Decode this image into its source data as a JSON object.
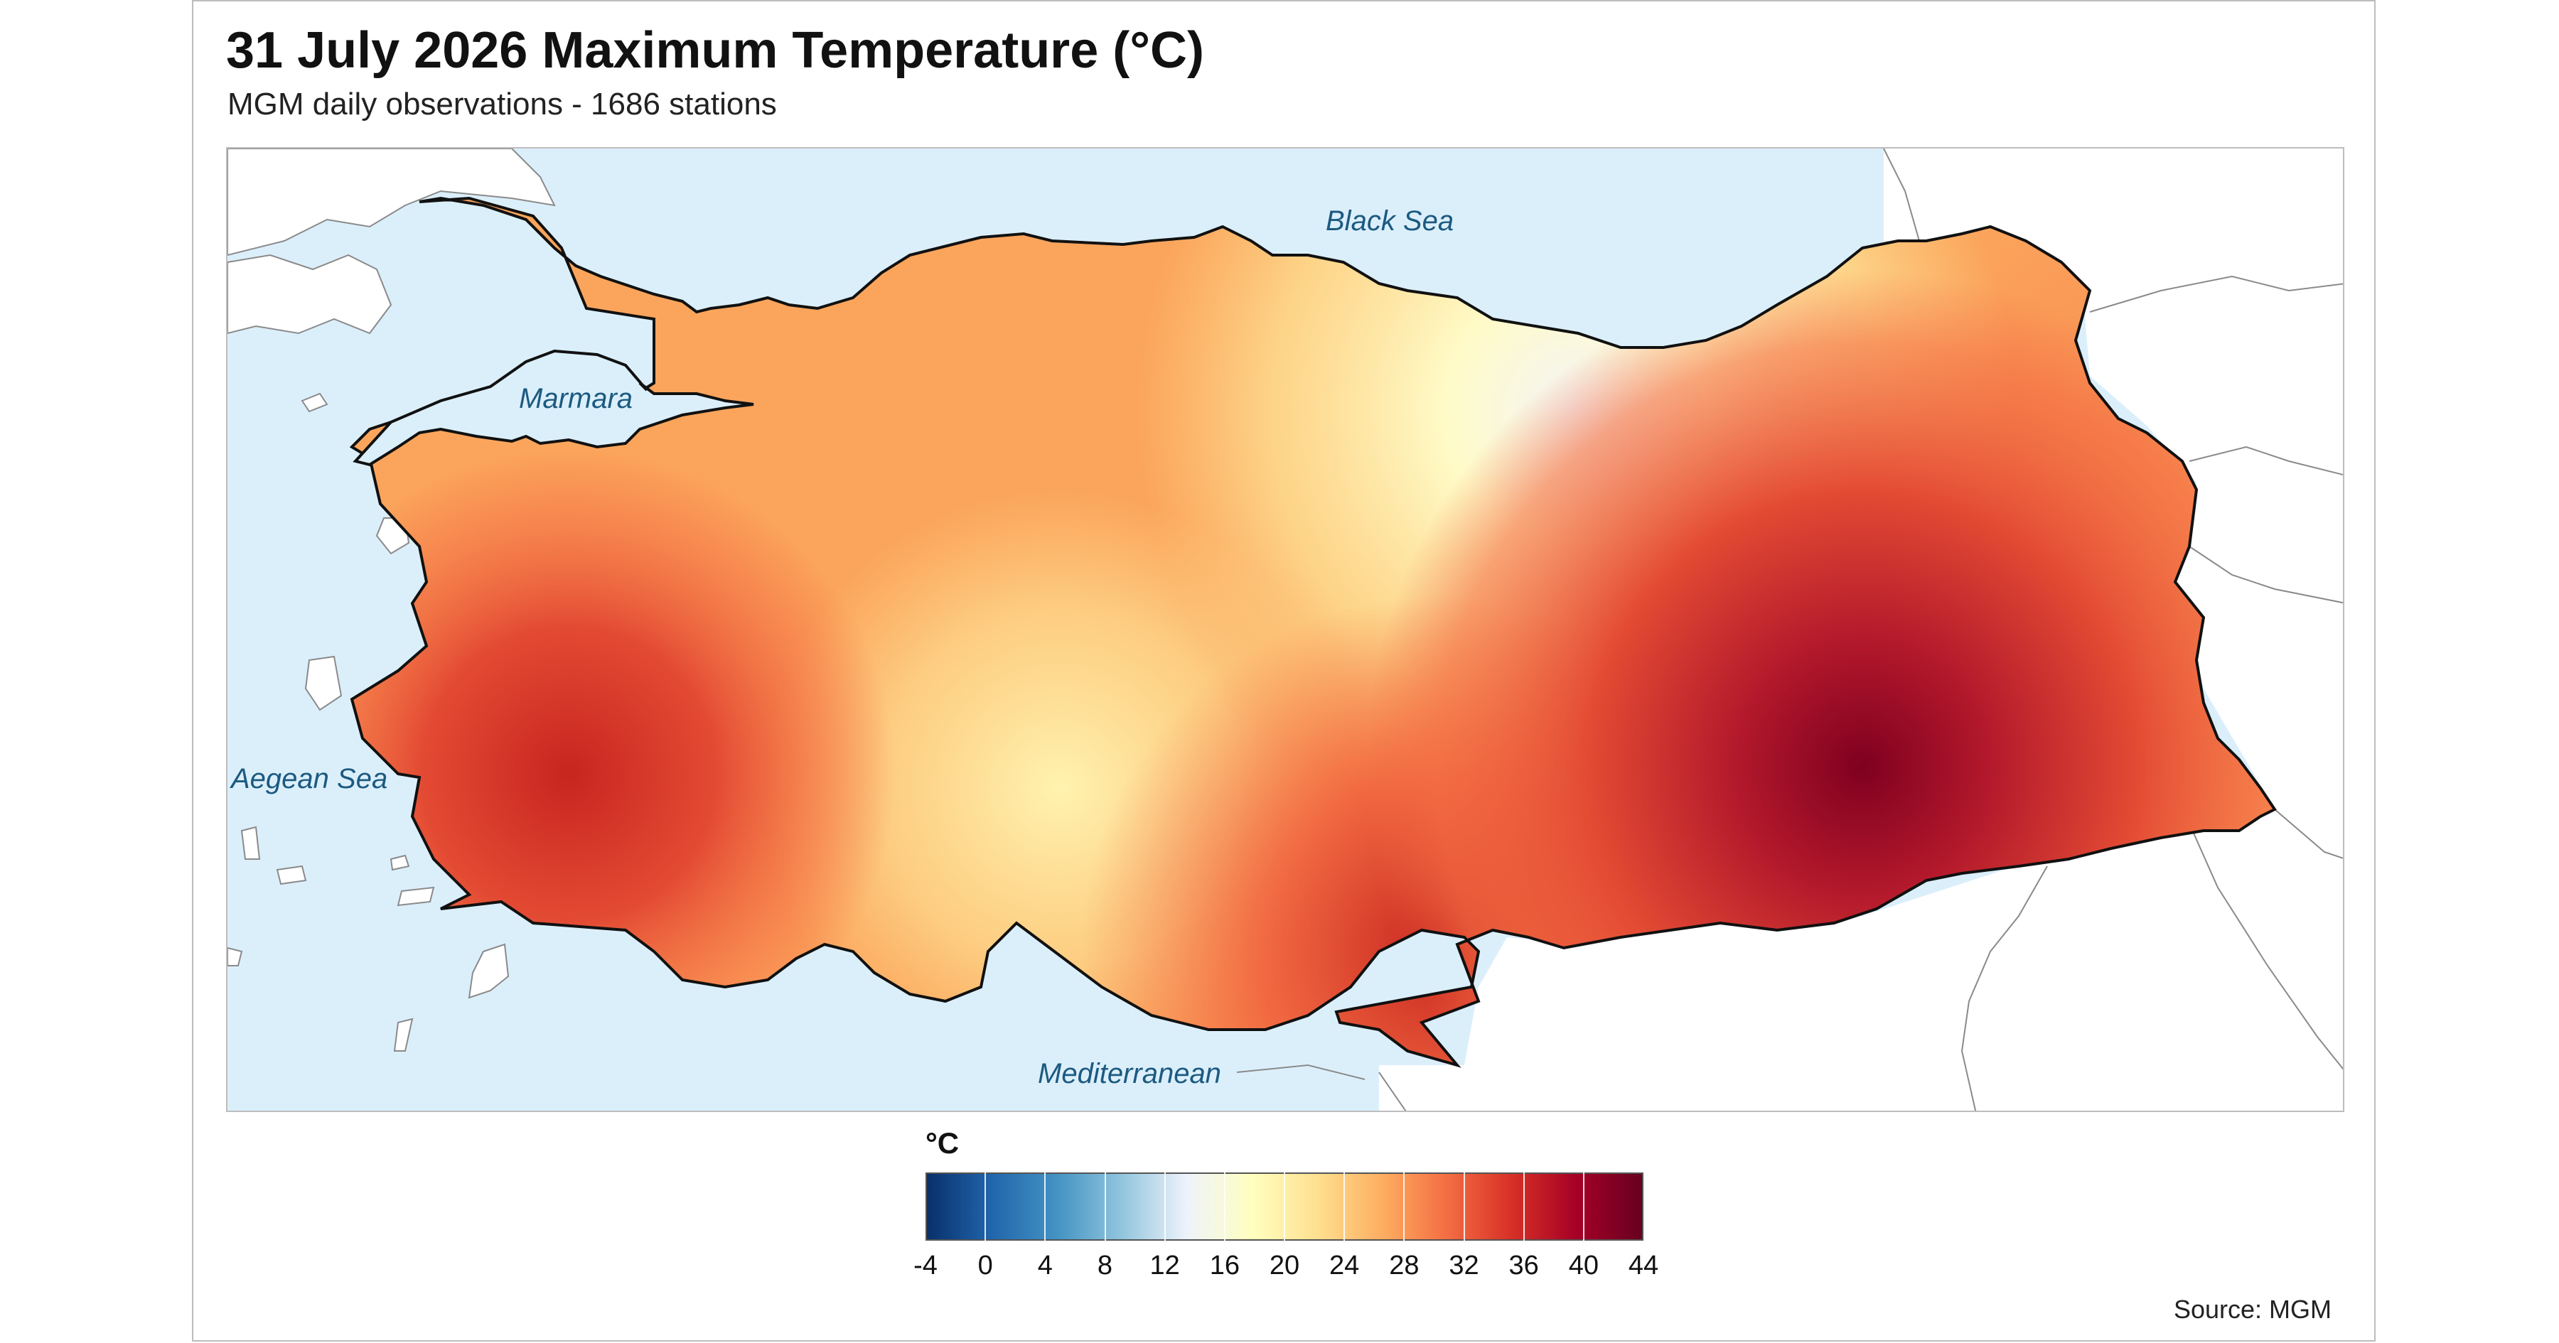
{
  "title": "31 July 2026 Maximum Temperature (°C)",
  "subtitle": "MGM daily observations - 1686 stations",
  "source": "Source: MGM",
  "map": {
    "sea_labels": {
      "black_sea": "Black Sea",
      "marmara": "Marmara",
      "aegean": "Aegean Sea",
      "mediterranean": "Mediterranean"
    },
    "colors": {
      "sea": "#dbeffb",
      "land_outside": "#ffffff",
      "border": "#111111",
      "neighbor_border": "#8a8a8a"
    }
  },
  "legend": {
    "title": "°C",
    "ticks": [
      "-4",
      "0",
      "4",
      "8",
      "12",
      "16",
      "20",
      "24",
      "28",
      "32",
      "36",
      "40",
      "44"
    ],
    "min": -4,
    "max": 44,
    "colors": [
      "#08306b",
      "#2166ac",
      "#4393c3",
      "#92c5de",
      "#eef3fb",
      "#ffffbf",
      "#fee090",
      "#fdae61",
      "#f46d43",
      "#d73027",
      "#a50026",
      "#67001f"
    ]
  }
}
